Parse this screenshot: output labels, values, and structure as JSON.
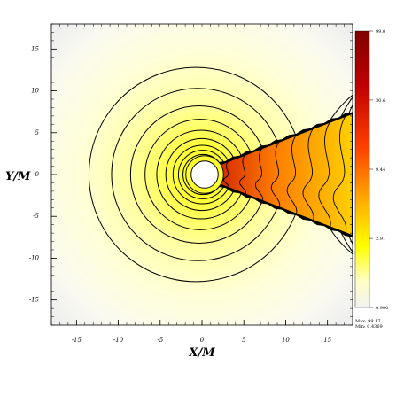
{
  "chart_data": {
    "type": "heatmap",
    "title": "",
    "xlabel": "X/M",
    "ylabel": "Y/M",
    "xlim": [
      -18,
      18
    ],
    "ylim": [
      -18,
      18
    ],
    "x_ticks": [
      "-15",
      "-10",
      "-5",
      "0",
      "5",
      "10",
      "15"
    ],
    "y_ticks": [
      "15",
      "10",
      "5",
      "0",
      "-5",
      "-10",
      "-15"
    ],
    "x_tick_values": [
      -15,
      -10,
      -5,
      0,
      5,
      10,
      15
    ],
    "y_tick_values": [
      15,
      10,
      5,
      0,
      -5,
      -10,
      -15
    ],
    "grid": false,
    "colorbar": {
      "min": 0.0,
      "max": 99.0,
      "tick_labels": [
        "99.0",
        "30.6",
        "9.44",
        "2.91",
        "0.900"
      ],
      "tick_values": [
        99.0,
        30.6,
        9.44,
        2.91,
        0.9
      ],
      "scale": "log",
      "max_label": "Max: 99.17",
      "min_label": "Min: 0.4369",
      "colors": [
        "#f2f2f2",
        "#ffffc8",
        "#ffff00",
        "#ffb000",
        "#e04000",
        "#800000"
      ]
    },
    "field": {
      "center": [
        0,
        0
      ],
      "inner_hole_radius": 1.8,
      "contour_radii": [
        2.0,
        2.4,
        2.9,
        3.5,
        4.3,
        5.3,
        6.6,
        8.2,
        10.3,
        12.8
      ],
      "jet": {
        "direction": "+x",
        "half_width_at_x18": 7.0,
        "peak_value": 99.0
      }
    }
  },
  "colors": {
    "background": "#ffffff",
    "frame": "#000000",
    "contour": "#000000"
  }
}
